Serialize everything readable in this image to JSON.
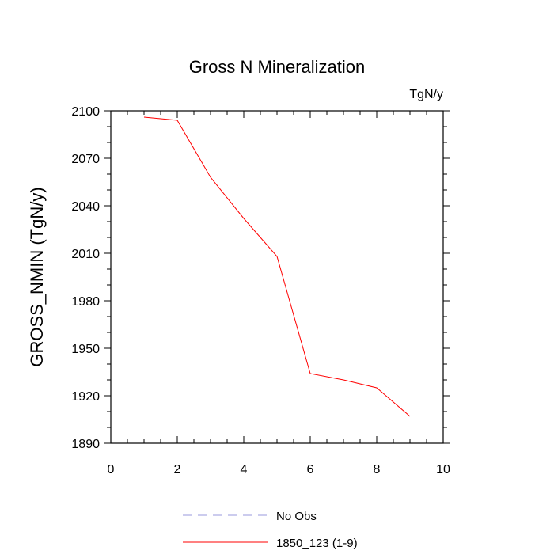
{
  "chart_data": {
    "type": "line",
    "title": "Gross N Mineralization",
    "units_label": "TgN/y",
    "ylabel": "GROSS_NMIN  (TgN/y)",
    "xlabel": "",
    "xlim": [
      0,
      10
    ],
    "ylim": [
      1890,
      2100
    ],
    "x_major_ticks": [
      0,
      2,
      4,
      6,
      8,
      10
    ],
    "x_tick_labels": [
      "0",
      "2",
      "4",
      "6",
      "8",
      "10"
    ],
    "y_major_ticks": [
      1890,
      1920,
      1950,
      1980,
      2010,
      2040,
      2070,
      2100
    ],
    "y_tick_labels": [
      "1890",
      "1920",
      "1950",
      "1980",
      "2010",
      "2040",
      "2070",
      "2100"
    ],
    "grid": false,
    "legend_placement": "bottom",
    "series": [
      {
        "name": "No Obs",
        "style": "dashed",
        "color": "#9999dd",
        "x": [],
        "y": []
      },
      {
        "name": "1850_123 (1-9)",
        "style": "solid",
        "color": "#ff0000",
        "x": [
          1,
          2,
          3,
          4,
          5,
          6,
          7,
          8,
          9
        ],
        "y": [
          2096,
          2094,
          2058,
          2032,
          2008,
          1934,
          1930,
          1925,
          1907
        ]
      }
    ]
  }
}
